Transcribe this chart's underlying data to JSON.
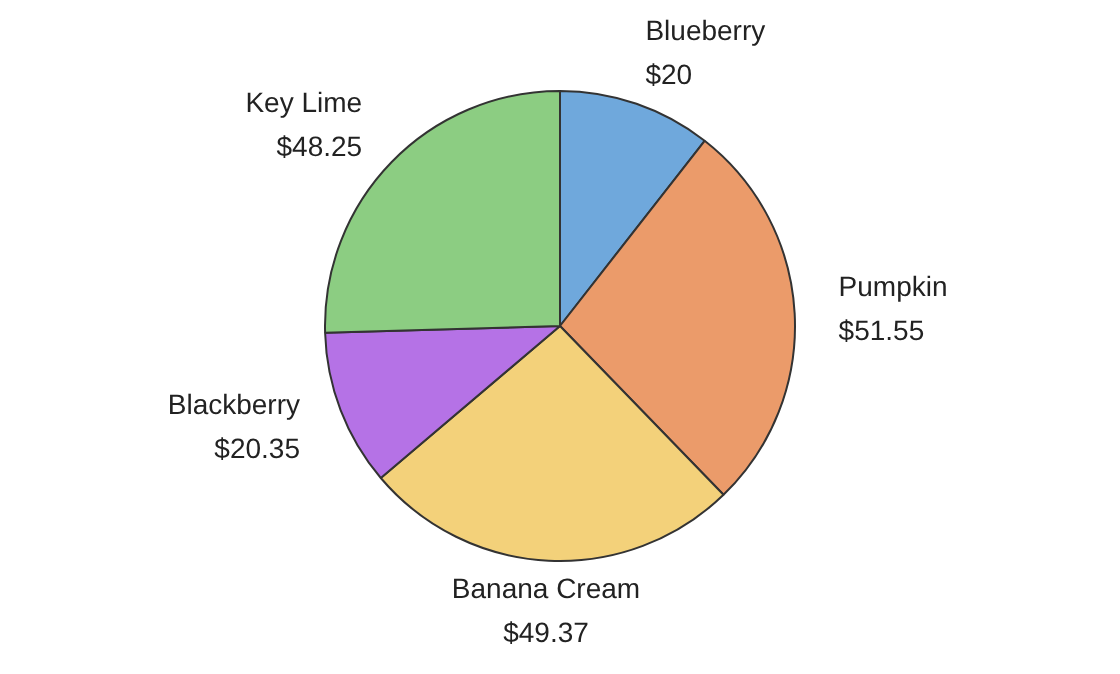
{
  "chart_data": {
    "type": "pie",
    "categories": [
      "Blueberry",
      "Pumpkin",
      "Banana Cream",
      "Blackberry",
      "Key Lime"
    ],
    "values": [
      20,
      51.55,
      49.37,
      20.35,
      48.25
    ],
    "value_labels": [
      "$20",
      "$51.55",
      "$49.37",
      "$20.35",
      "$48.25"
    ],
    "colors": [
      "#6fa8dc",
      "#eb9b6a",
      "#f3d17a",
      "#b572e6",
      "#8ccd82"
    ],
    "legend": false
  }
}
